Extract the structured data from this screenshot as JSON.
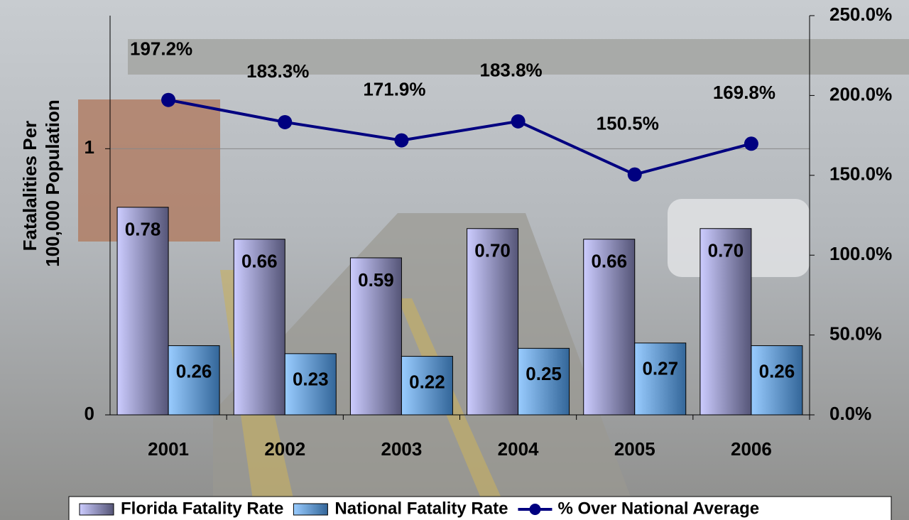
{
  "chart_data": {
    "type": "bar",
    "categories": [
      "2001",
      "2002",
      "2003",
      "2004",
      "2005",
      "2006"
    ],
    "y_label": "Fatalalities Per 100,000 Population",
    "series": [
      {
        "name": "Florida Fatality Rate",
        "color": "#ccccff",
        "values": [
          0.78,
          0.66,
          0.59,
          0.7,
          0.66,
          0.7
        ],
        "value_labels": [
          "0.78",
          "0.66",
          "0.59",
          "0.70",
          "0.66",
          "0.70"
        ]
      },
      {
        "name": "National Fatality Rate",
        "color": "#99ccff",
        "values": [
          0.26,
          0.23,
          0.22,
          0.25,
          0.27,
          0.26
        ],
        "value_labels": [
          "0.26",
          "0.23",
          "0.22",
          "0.25",
          "0.27",
          "0.26"
        ]
      },
      {
        "name": "% Over National Average",
        "type": "line",
        "axis": "y2",
        "color": "#000080",
        "values": [
          197.2,
          183.3,
          171.9,
          183.8,
          150.5,
          169.8
        ],
        "value_labels": [
          "197.2%",
          "183.3%",
          "171.9%",
          "183.8%",
          "150.5%",
          "169.8%"
        ]
      }
    ],
    "ylim": [
      0,
      1.5
    ],
    "yticks": [
      0,
      1
    ],
    "y2lim": [
      0,
      250
    ],
    "y2ticks": [
      {
        "value": 0,
        "label": "0.0%"
      },
      {
        "value": 50,
        "label": "50.0%"
      },
      {
        "value": 100,
        "label": "100.0%"
      },
      {
        "value": 150,
        "label": "150.0%"
      },
      {
        "value": 200,
        "label": "200.0%"
      },
      {
        "value": 250,
        "label": "250.0%"
      }
    ],
    "legend": "bottom",
    "grid": true
  }
}
